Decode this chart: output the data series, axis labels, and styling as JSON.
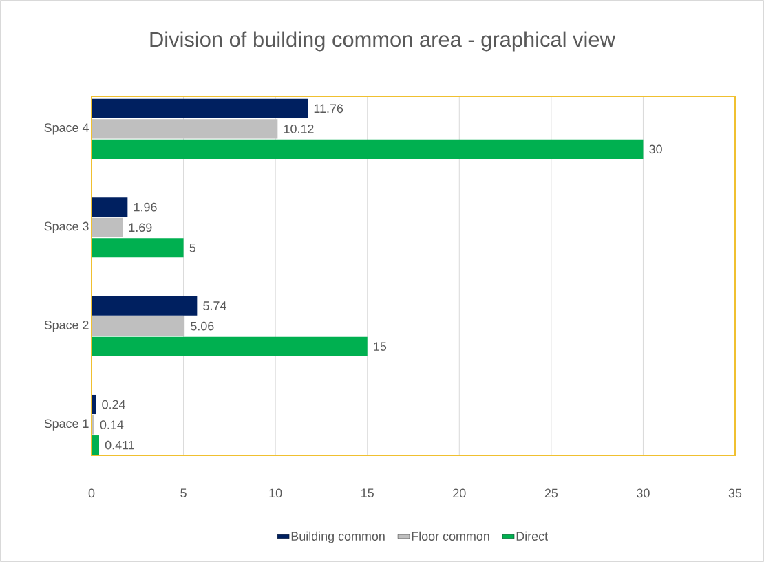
{
  "chart_data": {
    "type": "bar",
    "orientation": "horizontal",
    "title": "Division of building common area - graphical view",
    "categories": [
      "Space 4",
      "Space 3",
      "Space 2",
      "Space 1"
    ],
    "series": [
      {
        "name": "Building common",
        "color": "#002060",
        "values": [
          11.76,
          1.96,
          5.74,
          0.24
        ]
      },
      {
        "name": "Floor common",
        "color": "#bfbfbf",
        "values": [
          10.12,
          1.69,
          5.06,
          0.14
        ]
      },
      {
        "name": "Direct",
        "color": "#00b050",
        "values": [
          30,
          5,
          15,
          0.411
        ]
      }
    ],
    "xlim": [
      0,
      35
    ],
    "xticks": [
      0,
      5,
      10,
      15,
      20,
      25,
      30,
      35
    ],
    "grid": "x",
    "legend": "bottom",
    "data_labels": true
  }
}
